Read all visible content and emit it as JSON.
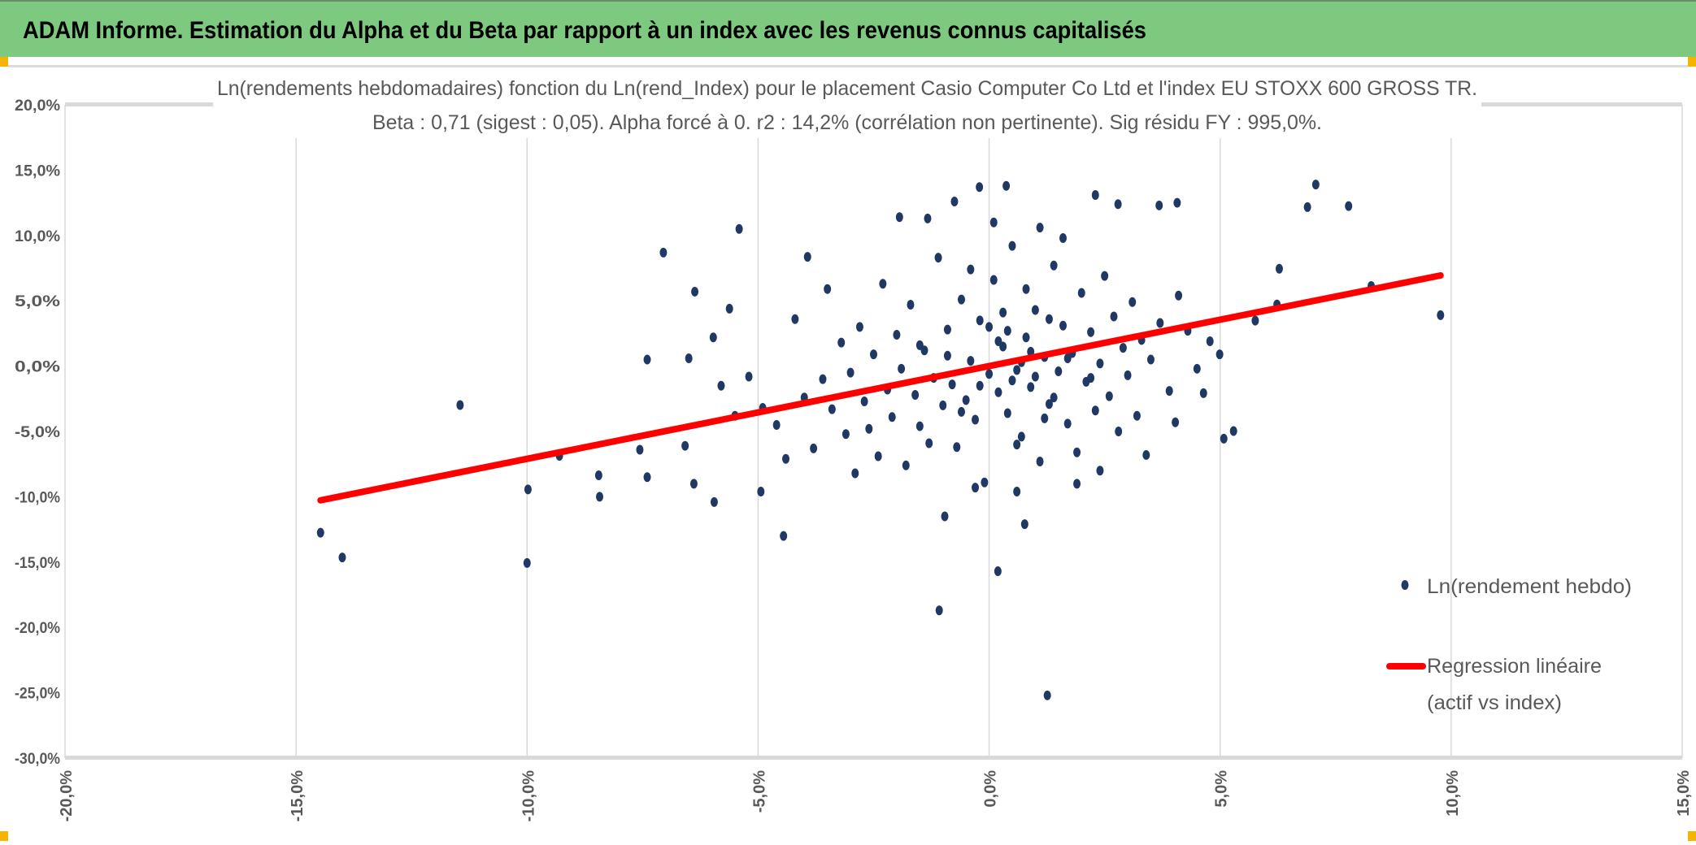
{
  "header": {
    "title": "ADAM Informe. Estimation du Alpha et du Beta par rapport à un index avec les revenus connus capitalisés",
    "background": "#7DC97F",
    "corner_marker_color": "#F5B400"
  },
  "chart_data": {
    "type": "scatter",
    "title": "Ln(rendements hebdomadaires) fonction du Ln(rend_Index) pour le placement Casio Computer Co Ltd et l'index EU STOXX 600 GROSS TR.",
    "subtitle": "Beta : 0,71 (sigest : 0,05). Alpha forcé à 0. r2 : 14,2% (corrélation non pertinente). Sig résidu FY : 995,0%.",
    "xlim": [
      -20,
      15
    ],
    "ylim": [
      -30,
      20
    ],
    "x_ticks": [
      "-20,0%",
      "-15,0%",
      "-10,0%",
      "-5,0%",
      "0,0%",
      "5,0%",
      "10,0%",
      "15,0%"
    ],
    "y_ticks": [
      "20,0%",
      "15,0%",
      "10,0%",
      "5,0%",
      "0,0%",
      "-5,0%",
      "-10,0%",
      "-15,0%",
      "-20,0%",
      "-25,0%",
      "-30,0%"
    ],
    "grid": "vertical",
    "legend_position": "right",
    "series": [
      {
        "name": "Ln(rendement hebdo)",
        "color": "#203864",
        "points": [
          [
            -14.47,
            -12.75
          ],
          [
            -14.0,
            -14.65
          ],
          [
            -11.45,
            -2.98
          ],
          [
            -9.98,
            -9.44
          ],
          [
            -10.0,
            -15.07
          ],
          [
            -9.3,
            -6.87
          ],
          [
            -8.45,
            -8.36
          ],
          [
            -8.43,
            -10.0
          ],
          [
            -7.05,
            8.69
          ],
          [
            -7.4,
            0.5
          ],
          [
            -7.4,
            -8.5
          ],
          [
            -7.56,
            -6.4
          ],
          [
            -6.37,
            5.7
          ],
          [
            -6.5,
            0.6
          ],
          [
            -6.39,
            -9.0
          ],
          [
            -6.58,
            -6.1
          ],
          [
            -5.41,
            10.5
          ],
          [
            -5.62,
            4.4
          ],
          [
            -5.97,
            2.2
          ],
          [
            -5.95,
            -10.4
          ],
          [
            -4.94,
            -9.6
          ],
          [
            -4.45,
            -13.0
          ],
          [
            -3.93,
            8.36
          ],
          [
            -1.08,
            -18.7
          ],
          [
            -0.96,
            -11.5
          ],
          [
            0.77,
            -12.1
          ],
          [
            0.19,
            -15.7
          ],
          [
            1.26,
            -25.2
          ],
          [
            5.08,
            -5.55
          ],
          [
            5.29,
            -4.97
          ],
          [
            5.76,
            3.48
          ],
          [
            6.23,
            4.72
          ],
          [
            6.28,
            7.45
          ],
          [
            6.89,
            12.17
          ],
          [
            7.07,
            13.9
          ],
          [
            7.78,
            12.25
          ],
          [
            8.27,
            6.13
          ],
          [
            9.77,
            3.9
          ],
          [
            4.78,
            1.9
          ],
          [
            4.99,
            0.9
          ],
          [
            4.64,
            -2.07
          ],
          [
            4.03,
            -4.3
          ],
          [
            4.07,
            12.5
          ],
          [
            3.68,
            12.3
          ],
          [
            2.79,
            12.4
          ],
          [
            2.3,
            13.1
          ],
          [
            0.37,
            13.8
          ],
          [
            -0.21,
            13.7
          ],
          [
            -0.75,
            12.6
          ],
          [
            -1.94,
            11.4
          ],
          [
            -1.33,
            11.3
          ],
          [
            -5.8,
            -1.5
          ],
          [
            -5.5,
            -3.8
          ],
          [
            -5.2,
            -0.8
          ],
          [
            -4.9,
            -3.2
          ],
          [
            -4.6,
            -4.5
          ],
          [
            -4.4,
            -7.1
          ],
          [
            -4.2,
            3.6
          ],
          [
            -4.0,
            -2.4
          ],
          [
            -3.8,
            -6.3
          ],
          [
            -3.6,
            -1.0
          ],
          [
            -3.5,
            5.9
          ],
          [
            -3.4,
            -3.3
          ],
          [
            -3.2,
            1.8
          ],
          [
            -3.1,
            -5.2
          ],
          [
            -3.0,
            -0.5
          ],
          [
            -2.9,
            -8.2
          ],
          [
            -2.8,
            3.0
          ],
          [
            -2.7,
            -2.7
          ],
          [
            -2.6,
            -4.8
          ],
          [
            -2.5,
            0.9
          ],
          [
            -2.4,
            -6.9
          ],
          [
            -2.3,
            6.3
          ],
          [
            -2.2,
            -1.8
          ],
          [
            -2.1,
            -3.9
          ],
          [
            -2.0,
            2.4
          ],
          [
            -1.9,
            -0.2
          ],
          [
            -1.8,
            -7.6
          ],
          [
            -1.7,
            4.7
          ],
          [
            -1.6,
            -2.2
          ],
          [
            -1.5,
            -4.6
          ],
          [
            -1.4,
            1.2
          ],
          [
            -1.3,
            -5.9
          ],
          [
            -1.2,
            -0.9
          ],
          [
            -1.1,
            8.3
          ],
          [
            -1.0,
            -3.0
          ],
          [
            -0.9,
            2.8
          ],
          [
            -0.8,
            -1.4
          ],
          [
            -0.7,
            -6.2
          ],
          [
            -0.6,
            5.1
          ],
          [
            -0.5,
            -2.6
          ],
          [
            -0.4,
            0.4
          ],
          [
            -0.3,
            -4.1
          ],
          [
            -0.2,
            3.5
          ],
          [
            -0.1,
            -8.9
          ],
          [
            0.0,
            -0.6
          ],
          [
            0.1,
            6.6
          ],
          [
            0.2,
            -2.0
          ],
          [
            0.3,
            1.5
          ],
          [
            0.4,
            -3.6
          ],
          [
            0.5,
            9.2
          ],
          [
            0.6,
            -0.3
          ],
          [
            0.7,
            -5.4
          ],
          [
            0.8,
            2.2
          ],
          [
            0.9,
            -1.6
          ],
          [
            1.0,
            4.3
          ],
          [
            1.1,
            -7.3
          ],
          [
            1.2,
            0.7
          ],
          [
            1.3,
            -2.9
          ],
          [
            1.4,
            7.7
          ],
          [
            1.5,
            -0.4
          ],
          [
            1.6,
            3.1
          ],
          [
            1.7,
            -4.4
          ],
          [
            1.8,
            1.0
          ],
          [
            1.9,
            -6.6
          ],
          [
            2.0,
            5.6
          ],
          [
            2.1,
            -1.2
          ],
          [
            2.2,
            2.6
          ],
          [
            2.3,
            -3.4
          ],
          [
            2.4,
            0.2
          ],
          [
            2.5,
            6.9
          ],
          [
            2.6,
            -2.3
          ],
          [
            2.7,
            3.8
          ],
          [
            2.8,
            -5.0
          ],
          [
            2.9,
            1.4
          ],
          [
            3.0,
            -0.7
          ],
          [
            3.1,
            4.9
          ],
          [
            3.2,
            -3.8
          ],
          [
            3.3,
            2.0
          ],
          [
            3.4,
            -6.8
          ],
          [
            3.5,
            0.5
          ],
          [
            3.7,
            3.3
          ],
          [
            3.9,
            -1.9
          ],
          [
            4.1,
            5.4
          ],
          [
            4.3,
            2.7
          ],
          [
            4.5,
            -0.2
          ],
          [
            1.9,
            -9.0
          ],
          [
            0.6,
            -9.6
          ],
          [
            -0.3,
            -9.3
          ],
          [
            2.4,
            -8.0
          ],
          [
            1.1,
            10.6
          ],
          [
            1.6,
            9.8
          ],
          [
            0.1,
            11.0
          ],
          [
            -0.4,
            7.4
          ],
          [
            0.8,
            5.9
          ],
          [
            0.3,
            4.1
          ],
          [
            1.3,
            3.6
          ],
          [
            0.5,
            -1.1
          ],
          [
            0.7,
            0.3
          ],
          [
            1.0,
            -0.8
          ],
          [
            0.2,
            1.9
          ],
          [
            -0.2,
            -1.5
          ],
          [
            0.9,
            1.1
          ],
          [
            1.4,
            -2.4
          ],
          [
            0.4,
            2.7
          ],
          [
            -0.6,
            -3.5
          ],
          [
            1.7,
            0.6
          ],
          [
            0.0,
            3.0
          ],
          [
            -0.9,
            0.8
          ],
          [
            2.2,
            -0.9
          ],
          [
            1.2,
            -4.0
          ],
          [
            -1.5,
            1.6
          ],
          [
            0.6,
            -6.0
          ]
        ]
      },
      {
        "name": "Regression linéaire (actif vs index)",
        "legend_lines": [
          "Regression linéaire",
          "(actif vs index)"
        ],
        "color": "#FF0000",
        "x": [
          -14.47,
          9.77
        ],
        "y": [
          -10.27,
          6.94
        ]
      }
    ]
  }
}
